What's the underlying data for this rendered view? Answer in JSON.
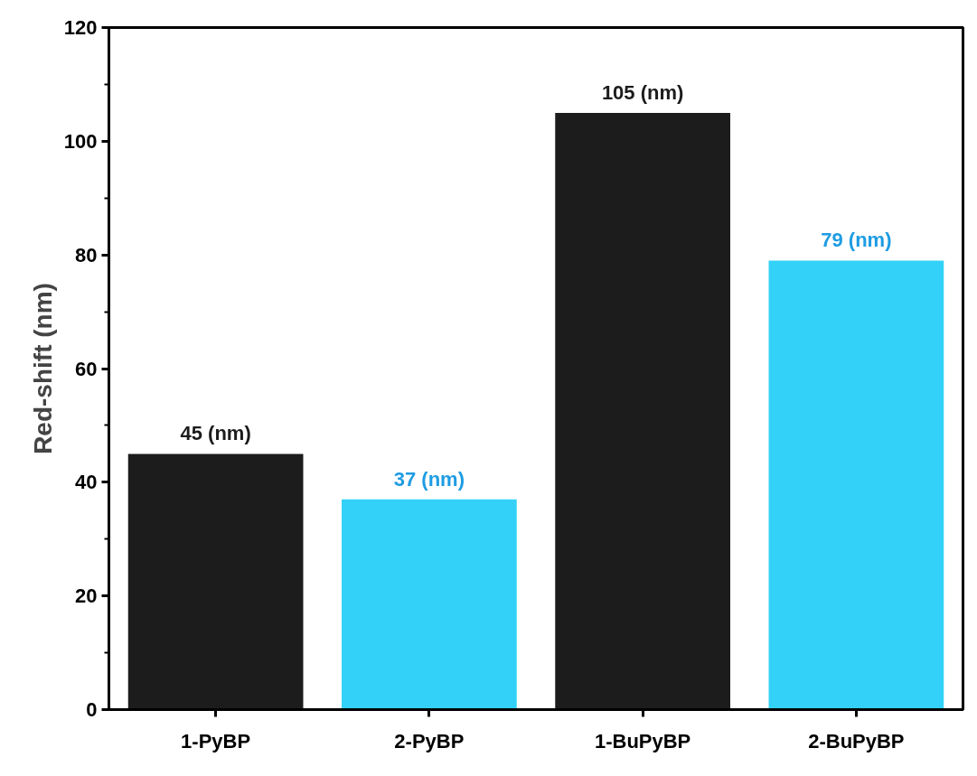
{
  "chart_data": {
    "type": "bar",
    "ylabel": "Red-shift (nm)",
    "categories": [
      "1-PyBP",
      "2-PyBP",
      "1-BuPyBP",
      "2-BuPyBP"
    ],
    "values": [
      45,
      37,
      105,
      79
    ],
    "colors": [
      "#1c1c1c",
      "#33d1f7",
      "#1c1c1c",
      "#33d1f7"
    ],
    "value_labels": [
      "45 (nm)",
      "37 (nm)",
      "105 (nm)",
      "79 (nm)"
    ],
    "ylim": [
      0,
      120
    ],
    "yticks": [
      0,
      20,
      40,
      60,
      80,
      100,
      120
    ],
    "grid": false
  }
}
